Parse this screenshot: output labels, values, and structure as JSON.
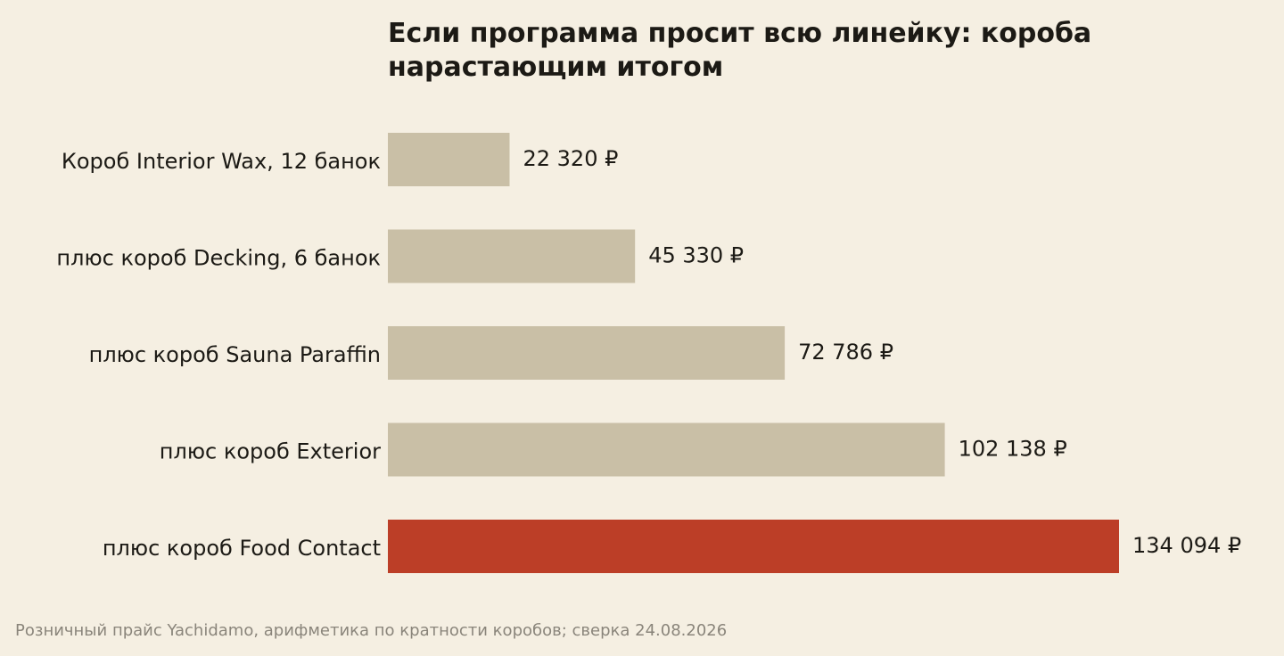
{
  "chart_data": {
    "type": "bar",
    "orientation": "horizontal",
    "title": "Если программа просит всю линейку: короба нарастающим итогом",
    "categories": [
      "Короб Interior Wax, 12 банок",
      "плюс короб Decking, 6 банок",
      "плюс короб Sauna Paraffin",
      "плюс короб Exterior",
      "плюс короб Food Contact"
    ],
    "values": [
      22320,
      45330,
      72786,
      102138,
      134094
    ],
    "value_labels": [
      "22 320 ₽",
      "45 330 ₽",
      "72 786 ₽",
      "102 138 ₽",
      "134 094 ₽"
    ],
    "highlight_index": 4,
    "xlim": [
      0,
      134094
    ],
    "grid": false,
    "xlabel": "",
    "ylabel": ""
  },
  "colors": {
    "background": "#f5efe2",
    "bar": "#c9bfa6",
    "highlight": "#bc3e27",
    "text": "#1c1a15",
    "source_text": "#8a857b"
  },
  "source": "Розничный прайс Yachidamo, арифметика по кратности коробов; сверка 24.08.2026"
}
